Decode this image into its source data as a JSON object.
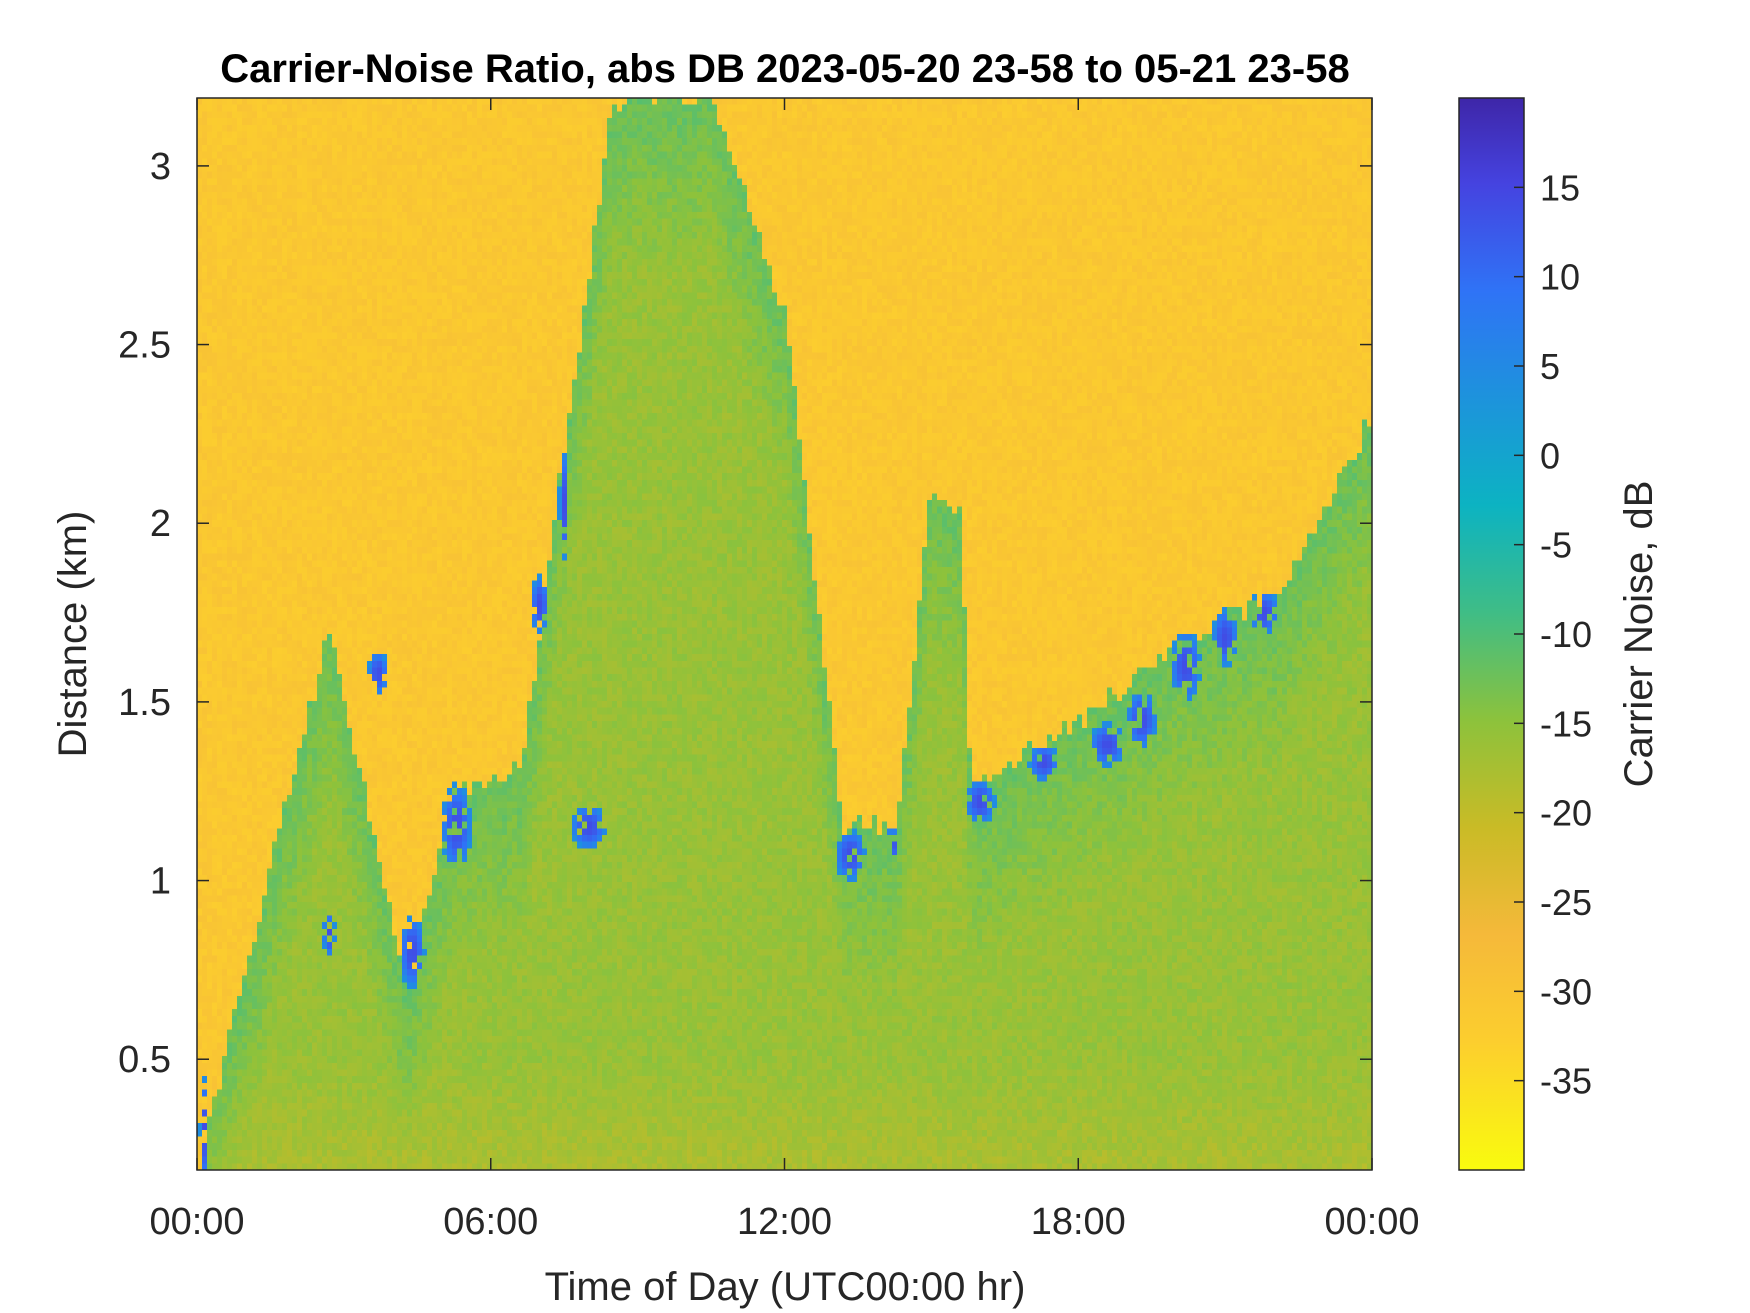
{
  "chart_data": {
    "type": "heatmap",
    "title": "Carrier-Noise Ratio, abs DB 2023-05-20 23-58 to 05-21 23-58",
    "xlabel": "Time of Day (UTC00:00 hr)",
    "ylabel": "Distance (km)",
    "xlim_hours": [
      0,
      24
    ],
    "ylim_km": [
      0.19,
      3.19
    ],
    "x_ticks": [
      {
        "value": 0,
        "label": "00:00"
      },
      {
        "value": 6,
        "label": "06:00"
      },
      {
        "value": 12,
        "label": "12:00"
      },
      {
        "value": 18,
        "label": "18:00"
      },
      {
        "value": 24,
        "label": "00:00"
      }
    ],
    "y_ticks": [
      {
        "value": 0.5,
        "label": "0.5"
      },
      {
        "value": 1,
        "label": "1"
      },
      {
        "value": 1.5,
        "label": "1.5"
      },
      {
        "value": 2,
        "label": "2"
      },
      {
        "value": 2.5,
        "label": "2.5"
      },
      {
        "value": 3,
        "label": "3"
      }
    ],
    "colorbar": {
      "label": "Carrier Noise, dB",
      "range": [
        -40,
        20
      ],
      "colormap": "parula (reversed: yellow = low, dark blue = high)",
      "ticks": [
        {
          "value": 15,
          "label": "15"
        },
        {
          "value": 10,
          "label": "10"
        },
        {
          "value": 5,
          "label": "5"
        },
        {
          "value": 0,
          "label": "0"
        },
        {
          "value": -5,
          "label": "-5"
        },
        {
          "value": -10,
          "label": "-10"
        },
        {
          "value": -15,
          "label": "-15"
        },
        {
          "value": -20,
          "label": "-20"
        },
        {
          "value": -25,
          "label": "-25"
        },
        {
          "value": -30,
          "label": "-30"
        },
        {
          "value": -35,
          "label": "-35"
        }
      ]
    },
    "colors": {
      "background_noise": "#fbbf2d",
      "aerosol_layer": "#36b8a0",
      "strong_return": "#3a3fd0"
    },
    "features": {
      "background_db": -31,
      "layer_db": -12,
      "cloud_db": 14,
      "boundary_layer_top_km": [
        {
          "t": 0,
          "km": 0.19
        },
        {
          "t": 2.7,
          "km": 1.7
        },
        {
          "t": 4.3,
          "km": 0.7
        },
        {
          "t": 5.3,
          "km": 1.25
        },
        {
          "t": 6.6,
          "km": 1.3
        },
        {
          "t": 7.2,
          "km": 1.9
        },
        {
          "t": 8.5,
          "km": 3.19
        },
        {
          "t": 10.5,
          "km": 3.19
        },
        {
          "t": 12.0,
          "km": 2.6
        },
        {
          "t": 13.2,
          "km": 1.15
        },
        {
          "t": 14.3,
          "km": 1.15
        },
        {
          "t": 15.0,
          "km": 2.1
        },
        {
          "t": 15.6,
          "km": 2.05
        },
        {
          "t": 15.8,
          "km": 1.25
        },
        {
          "t": 18.0,
          "km": 1.45
        },
        {
          "t": 20.5,
          "km": 1.7
        },
        {
          "t": 22.2,
          "km": 1.8
        },
        {
          "t": 24,
          "km": 2.3
        }
      ],
      "strong_return_blobs": [
        {
          "t": 0.15,
          "km": 0.3,
          "dt": 0.1,
          "dkm": 0.15
        },
        {
          "t": 2.7,
          "km": 0.85,
          "dt": 0.12,
          "dkm": 0.06
        },
        {
          "t": 3.7,
          "km": 1.58,
          "dt": 0.2,
          "dkm": 0.06
        },
        {
          "t": 4.4,
          "km": 0.8,
          "dt": 0.25,
          "dkm": 0.1
        },
        {
          "t": 5.3,
          "km": 1.15,
          "dt": 0.3,
          "dkm": 0.12
        },
        {
          "t": 7.0,
          "km": 1.77,
          "dt": 0.18,
          "dkm": 0.08
        },
        {
          "t": 7.5,
          "km": 2.05,
          "dt": 0.1,
          "dkm": 0.15
        },
        {
          "t": 8.0,
          "km": 1.15,
          "dt": 0.35,
          "dkm": 0.06
        },
        {
          "t": 13.35,
          "km": 1.07,
          "dt": 0.3,
          "dkm": 0.07
        },
        {
          "t": 14.2,
          "km": 1.1,
          "dt": 0.12,
          "dkm": 0.05
        },
        {
          "t": 16.0,
          "km": 1.22,
          "dt": 0.3,
          "dkm": 0.06
        },
        {
          "t": 17.3,
          "km": 1.33,
          "dt": 0.3,
          "dkm": 0.05
        },
        {
          "t": 18.6,
          "km": 1.38,
          "dt": 0.35,
          "dkm": 0.06
        },
        {
          "t": 19.3,
          "km": 1.45,
          "dt": 0.3,
          "dkm": 0.08
        },
        {
          "t": 20.2,
          "km": 1.6,
          "dt": 0.3,
          "dkm": 0.1
        },
        {
          "t": 21.0,
          "km": 1.68,
          "dt": 0.25,
          "dkm": 0.08
        },
        {
          "t": 21.8,
          "km": 1.75,
          "dt": 0.3,
          "dkm": 0.06
        }
      ]
    }
  }
}
